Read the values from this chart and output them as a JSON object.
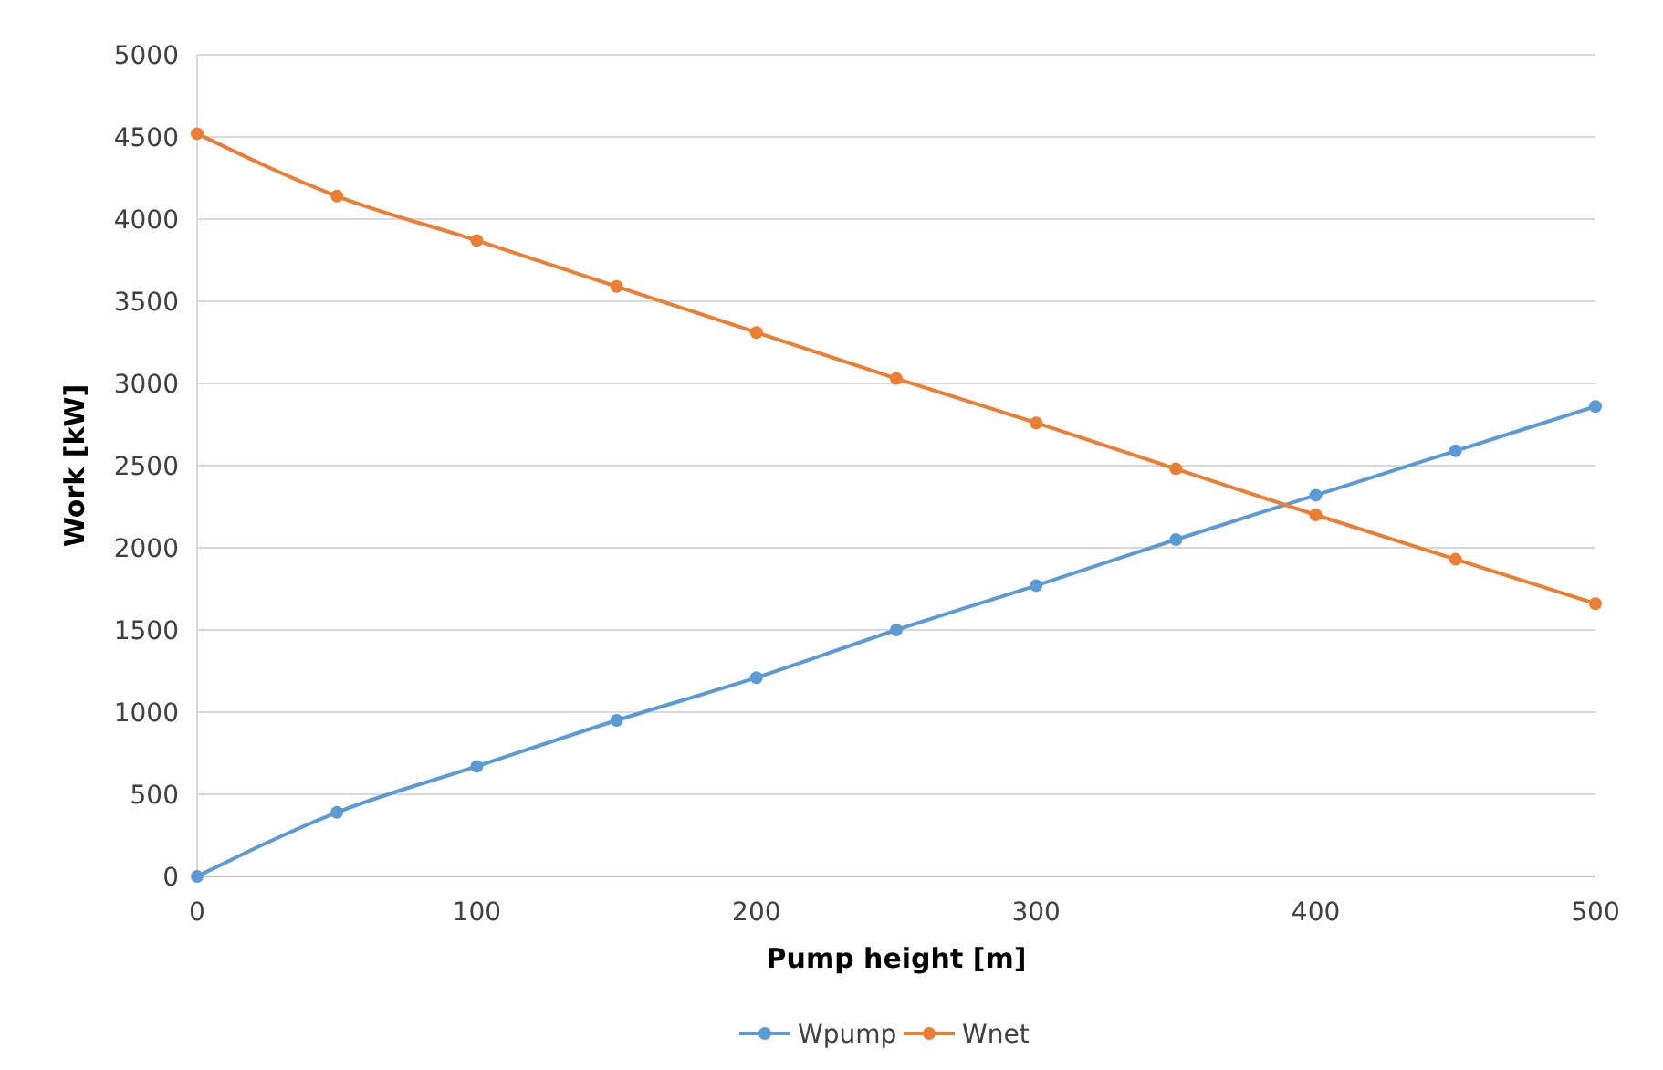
{
  "chart_data": {
    "type": "line",
    "xlabel": "Pump height [m]",
    "ylabel": "Work [kW]",
    "x": [
      0,
      50,
      100,
      150,
      200,
      250,
      300,
      350,
      400,
      450,
      500
    ],
    "series": [
      {
        "name": "Wpump",
        "color": "#5b9bd5",
        "values": [
          0,
          390,
          670,
          950,
          1210,
          1500,
          1770,
          2050,
          2320,
          2590,
          2860
        ]
      },
      {
        "name": "Wnet",
        "color": "#ed7d31",
        "values": [
          4520,
          4140,
          3870,
          3590,
          3310,
          3030,
          2760,
          2480,
          2200,
          1930,
          1660
        ]
      }
    ],
    "xlim": [
      0,
      500
    ],
    "xticks": [
      0,
      100,
      200,
      300,
      400,
      500
    ],
    "ylim": [
      0,
      5000
    ],
    "yticks": [
      0,
      500,
      1000,
      1500,
      2000,
      2500,
      3000,
      3500,
      4000,
      4500,
      5000
    ],
    "grid": "y",
    "legend": "bottom",
    "marker": "circle",
    "line_style": "solid"
  }
}
